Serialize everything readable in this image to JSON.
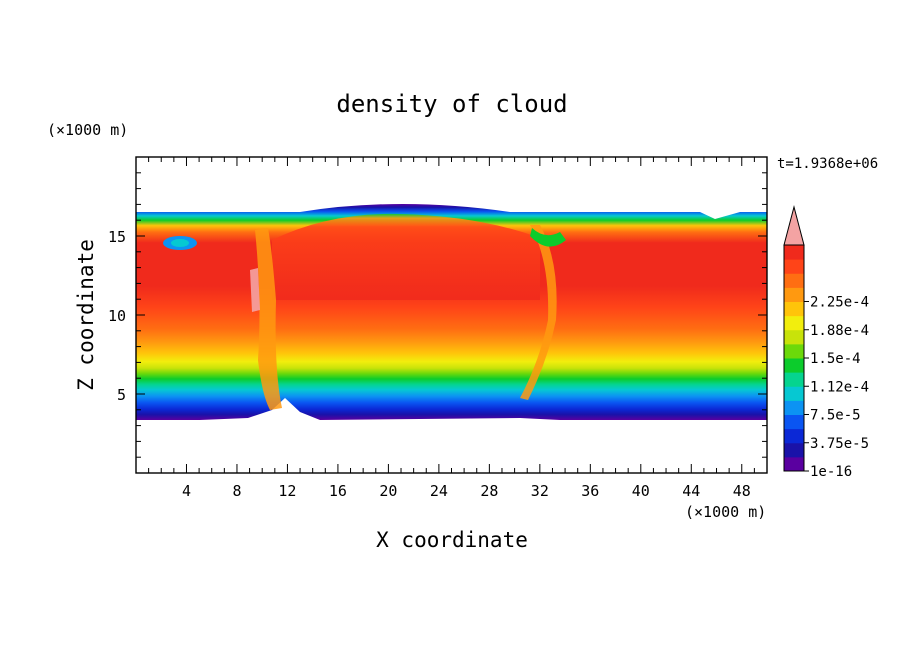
{
  "chart_data": {
    "type": "heatmap",
    "title": "density of cloud",
    "xlabel": "X coordinate",
    "ylabel": "Z coordinate",
    "x_unit_label": "(×1000 m)",
    "y_unit_label": "(×1000 m)",
    "time_label": "t=1.9368e+06",
    "xlim": [
      0,
      50
    ],
    "ylim": [
      0,
      20
    ],
    "x_ticks": [
      "4",
      "8",
      "12",
      "16",
      "20",
      "24",
      "28",
      "32",
      "36",
      "40",
      "44",
      "48"
    ],
    "y_ticks": [
      "5",
      "10",
      "15"
    ],
    "colorbar": {
      "labels": [
        "1e-16",
        "3.75e-5",
        "7.5e-5",
        "1.12e-4",
        "1.5e-4",
        "1.88e-4",
        "2.25e-4"
      ],
      "colors": [
        "#5a00a0",
        "#1a12a8",
        "#0b28d6",
        "#0a55f2",
        "#0c93f3",
        "#06c8d2",
        "#05d48f",
        "#0ccc2c",
        "#6cd90a",
        "#c8e30a",
        "#f2ee0d",
        "#ffc40a",
        "#ff9910",
        "#ff6e12",
        "#ff4418",
        "#f02a1c"
      ],
      "overflow_color": "#f4a3a3"
    },
    "field_description_values": {
      "cloud_base_km": 3.5,
      "cloud_top_km": 16.3,
      "core_value": 0.00024
    }
  }
}
